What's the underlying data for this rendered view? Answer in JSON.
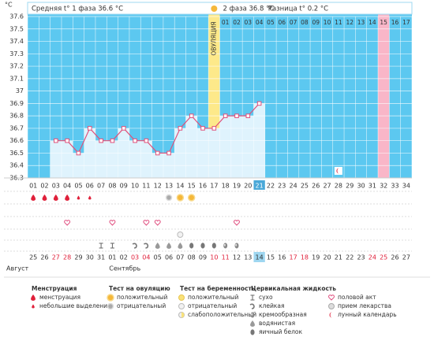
{
  "chart_data": {
    "type": "line",
    "y_label": "°C",
    "header": [
      "Средняя t° 1 фаза 36.6 °C",
      "2 фаза 36.8 °C",
      "Разница t° 0.2 °C"
    ],
    "ovulation_label": "ОВУЛЯЦИЯ",
    "ovulation_day": 17,
    "categories": [
      "01",
      "02",
      "03",
      "04",
      "05",
      "06",
      "07",
      "08",
      "09",
      "10",
      "11",
      "12",
      "13",
      "14",
      "15",
      "16",
      "17",
      "18",
      "19",
      "20",
      "21",
      "22",
      "23",
      "24",
      "25",
      "26",
      "27",
      "28",
      "29",
      "30",
      "31",
      "32",
      "33",
      "34"
    ],
    "phase2_labels": [
      "01",
      "02",
      "03",
      "04",
      "05",
      "06",
      "07",
      "08",
      "09",
      "10",
      "11",
      "12",
      "13",
      "14",
      "15",
      "16",
      "17"
    ],
    "values": [
      null,
      null,
      36.6,
      36.6,
      36.5,
      36.7,
      36.6,
      36.6,
      36.7,
      36.6,
      36.6,
      36.5,
      36.5,
      36.7,
      36.8,
      36.7,
      36.7,
      36.8,
      36.8,
      36.8,
      36.9,
      null,
      null,
      null,
      null,
      null,
      null,
      null,
      null,
      null,
      null,
      null,
      null,
      null
    ],
    "color": "#e0507a",
    "bar_color": "#dff3fd",
    "background": "#5cc8f0",
    "ovulation_color": "#fde98a",
    "ylim": [
      36.3,
      37.6
    ],
    "yticks": [
      36.3,
      36.4,
      36.5,
      36.6,
      36.7,
      36.8,
      36.9,
      37,
      37.1,
      37.2,
      37.3,
      37.4,
      37.5,
      37.6
    ],
    "grid": true,
    "today_day": 21,
    "marked_day": 32,
    "marked_color": "#f9b6c8",
    "dates": [
      "25",
      "26",
      "27",
      "28",
      "29",
      "30",
      "31",
      "01",
      "02",
      "03",
      "04",
      "05",
      "06",
      "07",
      "08",
      "09",
      "10",
      "11",
      "12",
      "13",
      "14",
      "15",
      "16",
      "17",
      "18",
      "19",
      "20",
      "21",
      "22",
      "23",
      "24",
      "25",
      "26",
      "27"
    ],
    "weekend_days": [
      3,
      4,
      10,
      11,
      17,
      18,
      24,
      25,
      31,
      32
    ],
    "weekend_color": "#e0203a",
    "months": [
      "Август",
      "Сентябрь"
    ],
    "month_start_days": [
      1,
      8
    ],
    "symbols": {
      "drop": [
        1,
        2,
        3,
        4
      ],
      "small_drop": [
        5,
        6
      ],
      "ovu_neg": [
        13
      ],
      "ovu_pos": [
        14,
        15
      ],
      "heart": [
        4,
        8,
        11,
        12,
        19
      ],
      "preg_neg": [
        14
      ],
      "dry": [
        7,
        8
      ],
      "sticky": [
        10,
        11
      ],
      "watery": [
        12,
        13,
        14
      ],
      "egg": [
        15,
        16,
        17
      ],
      "creamy": [
        18,
        19
      ],
      "moon": [
        28
      ]
    },
    "legend": [
      {
        "title": "Менструация",
        "items": [
          {
            "label": "менструация",
            "icon": "drop"
          },
          {
            "label": "небольшие выделения",
            "icon": "small_drop"
          }
        ]
      },
      {
        "title": "Тест на овуляцию",
        "items": [
          {
            "label": "положительный",
            "icon": "ovu_pos"
          },
          {
            "label": "отрицательный",
            "icon": "ovu_neg"
          }
        ]
      },
      {
        "title": "Тест на беременность",
        "items": [
          {
            "label": "положительный",
            "icon": "preg_pos"
          },
          {
            "label": "отрицательный",
            "icon": "preg_neg"
          },
          {
            "label": "слабоположительный",
            "icon": "preg_weak"
          }
        ]
      },
      {
        "title": "Цервикальная жидкость",
        "items": [
          {
            "label": "сухо",
            "icon": "dry"
          },
          {
            "label": "клейкая",
            "icon": "sticky"
          },
          {
            "label": "кремообразная",
            "icon": "creamy"
          },
          {
            "label": "водянистая",
            "icon": "watery"
          },
          {
            "label": "яичный белок",
            "icon": "egg"
          }
        ]
      },
      {
        "items": [
          {
            "label": "половой акт",
            "icon": "heart"
          },
          {
            "label": "прием лекарства",
            "icon": "pill"
          },
          {
            "label": "лунный календарь",
            "icon": "moon"
          }
        ]
      }
    ]
  }
}
